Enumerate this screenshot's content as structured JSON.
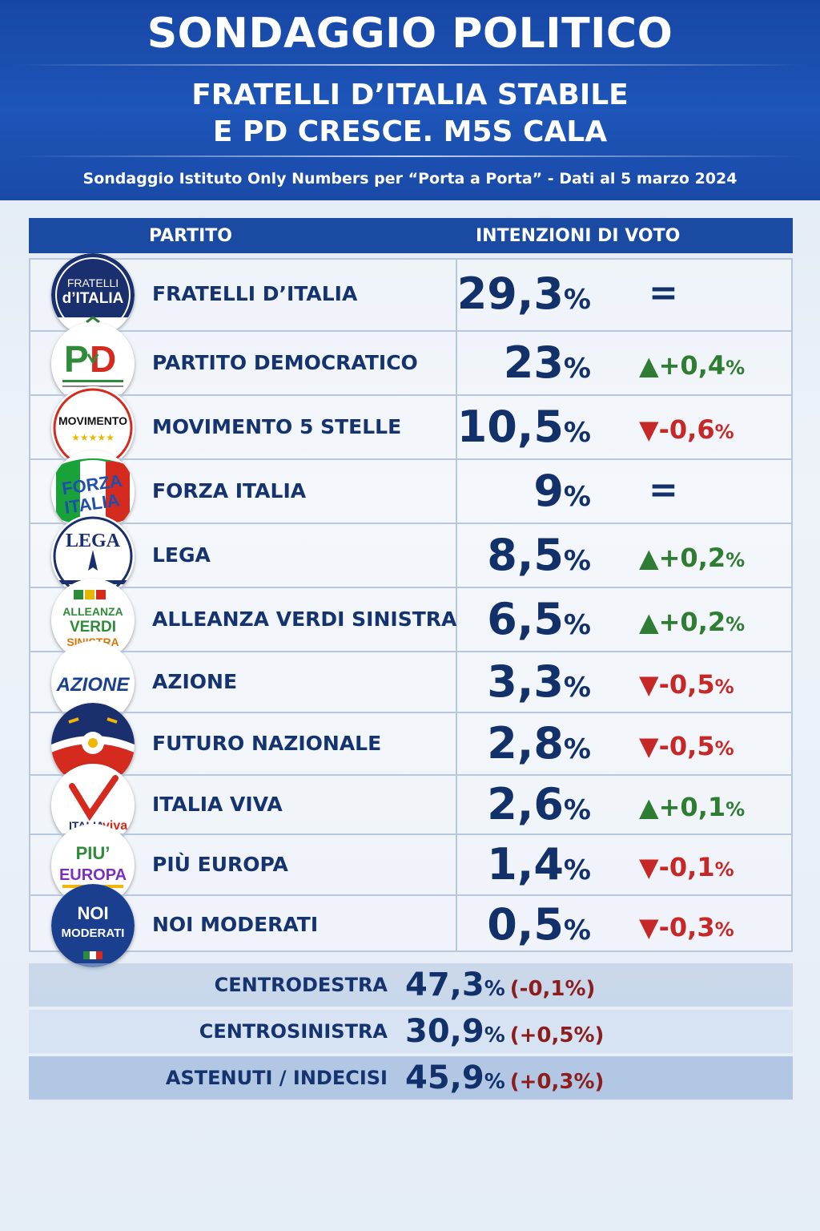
{
  "header": {
    "title": "SONDAGGIO POLITICO",
    "subtitle_line1": "FRATELLI D’ITALIA STABILE",
    "subtitle_line2": "E PD CRESCE. M5S CALA",
    "source": "Sondaggio Istituto Only Numbers per “Porta a Porta” - Dati al 5 marzo 2024"
  },
  "table": {
    "col_party": "PARTITO",
    "col_vote": "INTENZIONI DI VOTO"
  },
  "colors": {
    "header_blue": "#1d55b8",
    "text_navy": "#12306a",
    "up_green": "#2e7d32",
    "down_red": "#c62828"
  },
  "chart_data": {
    "type": "table",
    "title": "SONDAGGIO POLITICO",
    "columns": [
      "PARTITO",
      "INTENZIONI DI VOTO"
    ],
    "rows": [
      {
        "party": "FRATELLI D’ITALIA",
        "value": "29,3",
        "pct": "%",
        "trend": "same",
        "change": "="
      },
      {
        "party": "PARTITO DEMOCRATICO",
        "value": "23",
        "pct": "%",
        "trend": "up",
        "change": "+0,4"
      },
      {
        "party": "MOVIMENTO 5 STELLE",
        "value": "10,5",
        "pct": "%",
        "trend": "down",
        "change": "-0,6"
      },
      {
        "party": "FORZA ITALIA",
        "value": "9",
        "pct": "%",
        "trend": "same",
        "change": "="
      },
      {
        "party": "LEGA",
        "value": "8,5",
        "pct": "%",
        "trend": "up",
        "change": "+0,2"
      },
      {
        "party": "ALLEANZA VERDI SINISTRA",
        "value": "6,5",
        "pct": "%",
        "trend": "up",
        "change": "+0,2"
      },
      {
        "party": "AZIONE",
        "value": "3,3",
        "pct": "%",
        "trend": "down",
        "change": "-0,5"
      },
      {
        "party": "FUTURO NAZIONALE",
        "value": "2,8",
        "pct": "%",
        "trend": "down",
        "change": "-0,5"
      },
      {
        "party": "ITALIA VIVA",
        "value": "2,6",
        "pct": "%",
        "trend": "up",
        "change": "+0,1"
      },
      {
        "party": "PIÙ EUROPA",
        "value": "1,4",
        "pct": "%",
        "trend": "down",
        "change": "-0,1"
      },
      {
        "party": "NOI MODERATI",
        "value": "0,5",
        "pct": "%",
        "trend": "down",
        "change": "-0,3"
      }
    ],
    "summary": [
      {
        "label": "CENTRODESTRA",
        "value": "47,3",
        "pct": "%",
        "change": "(-0,1%)"
      },
      {
        "label": "CENTROSINISTRA",
        "value": "30,9",
        "pct": "%",
        "change": "(+0,5%)"
      },
      {
        "label": "ASTENUTI / INDECISI",
        "value": "45,9",
        "pct": "%",
        "change": "(+0,3%)"
      }
    ]
  },
  "logos": {
    "fdi_line1": "FRATELLI",
    "fdi_line2": "d’ITALIA",
    "pd_text": "PD",
    "m5s_text": "MOVIMENTO",
    "fi_line1": "FORZA",
    "fi_line2": "ITALIA",
    "lega_text": "LEGA",
    "avs_line1": "ALLEANZA",
    "avs_line2": "VERDI",
    "avs_line3": "SINISTRA",
    "azione_text": "AZIONE",
    "iv_line1": "ITALIA",
    "iv_line2": "viva",
    "pe_line1": "PIU’",
    "pe_line2": "EUROPA",
    "nm_line1": "NOI",
    "nm_line2": "MODERATI"
  }
}
